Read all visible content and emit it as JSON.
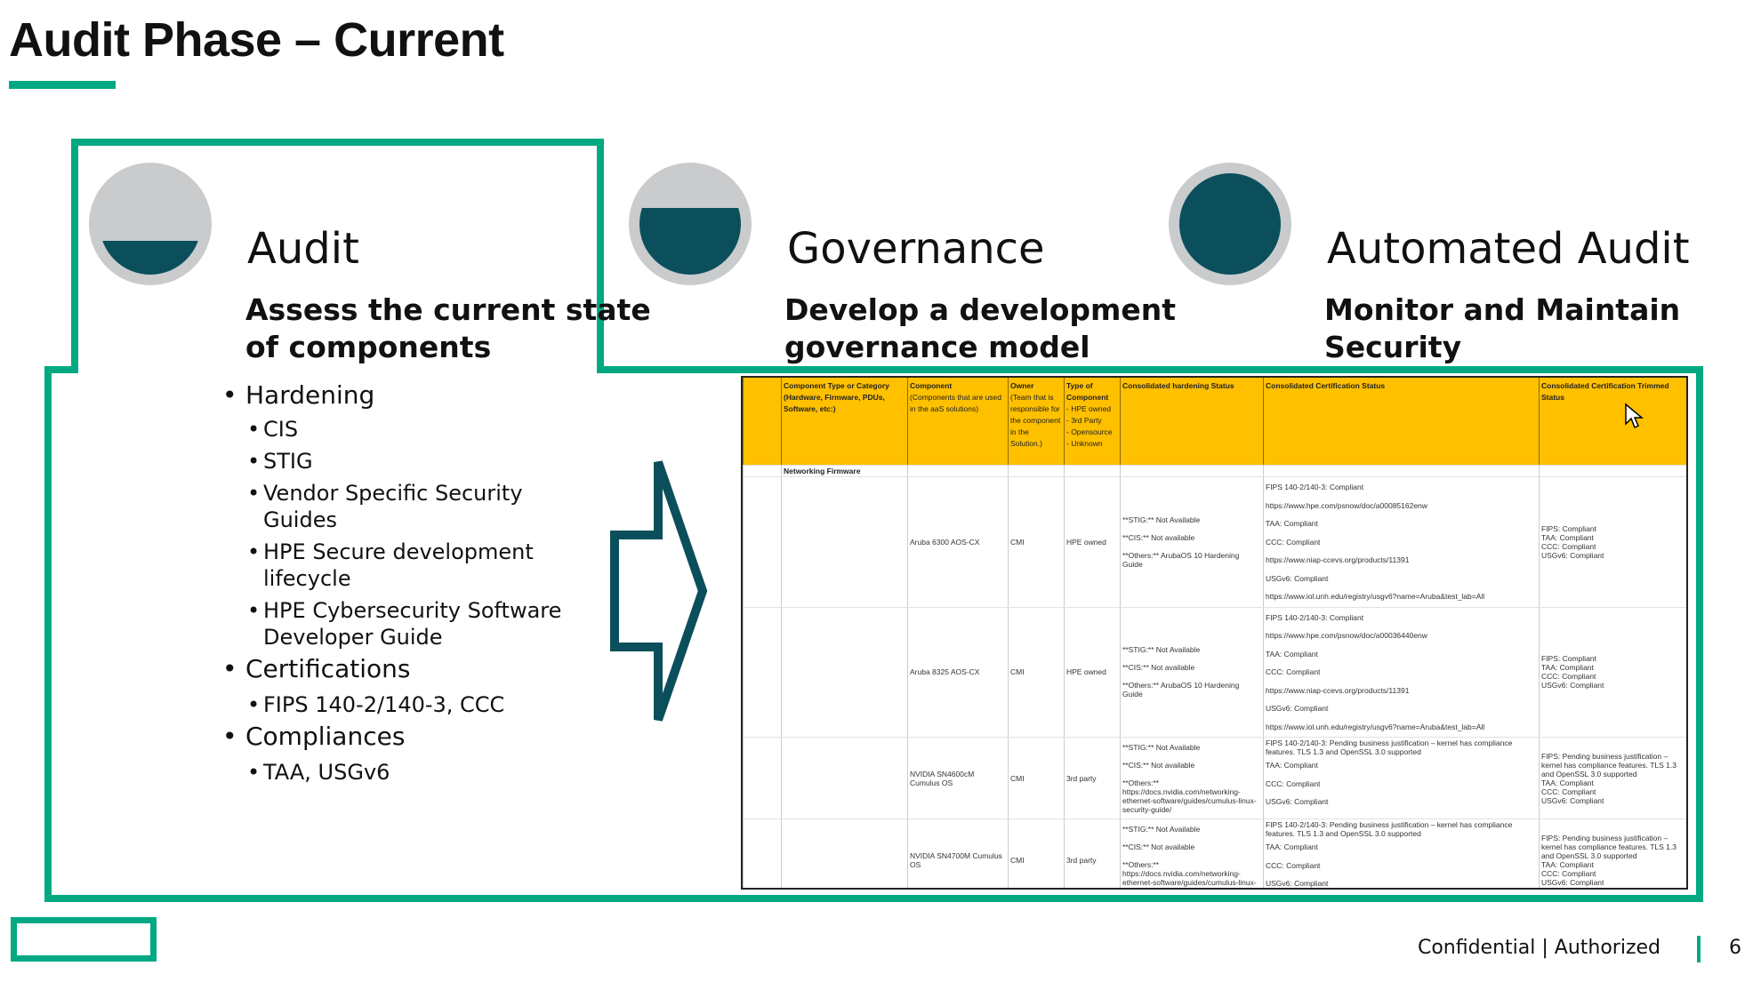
{
  "slide": {
    "title": "Audit Phase – Current",
    "accent_color": "#01a982",
    "dark_color": "#0b4f5c"
  },
  "phases": [
    {
      "title": "Audit",
      "subtitle_lines": [
        "Assess the current state",
        "of components"
      ],
      "fill_level": 0.33
    },
    {
      "title": "Governance",
      "subtitle_lines": [
        "Develop a development",
        "governance model"
      ],
      "fill_level": 0.66
    },
    {
      "title": "Automated Audit",
      "subtitle_lines": [
        "Monitor and Maintain",
        "Security"
      ],
      "fill_level": 1.0
    }
  ],
  "audit_bullets": {
    "hardening": "Hardening",
    "hardening_items": [
      "CIS",
      "STIG",
      "Vendor Specific Security\nGuides",
      "HPE Secure development\nlifecycle",
      "HPE Cybersecurity Software\nDeveloper Guide"
    ],
    "certifications": "Certifications",
    "certification_items": [
      "FIPS 140-2/140-3, CCC"
    ],
    "compliances": "Compliances",
    "compliance_items": [
      "TAA, USGv6"
    ]
  },
  "table": {
    "header_color": "#ffc000",
    "headers": {
      "category": "Component Type or Category (Hardware, Firmware, PDUs, Software, etc:)",
      "component": "Component",
      "component_sub": "(Components that are used in the aaS solutions)",
      "owner": "Owner",
      "owner_sub": "(Team that is responsible for the component in the Solution.)",
      "type": "Type of Component",
      "type_sub": "- HPE owned\n- 3rd Party\n- Opensource\n- Unknown",
      "hardening": "Consolidated hardening Status",
      "certification": "Consolidated Certification Status",
      "trimmed": "Consolidated Certification Trimmed Status"
    },
    "group": "Networking Firmware",
    "rows": [
      {
        "component": "Aruba 6300 AOS-CX",
        "owner": "CMI",
        "type": "HPE owned",
        "hardening": "**STIG:** Not Available\n\n**CIS:** Not available\n\n**Others:** ArubaOS 10 Hardening Guide",
        "certification": "FIPS 140-2/140-3: Compliant\nhttps://www.hpe.com/psnow/doc/a00085162enw\nTAA: Compliant\nCCC: Compliant\nhttps://www.niap-ccevs.org/products/11391\nUSGv6: Compliant\nhttps://www.iol.unh.edu/registry/usgv6?name=Aruba&test_lab=All",
        "trimmed": "FIPS: Compliant\nTAA: Compliant\nCCC: Compliant\nUSGv6: Compliant"
      },
      {
        "component": "Aruba 8325 AOS-CX",
        "owner": "CMI",
        "type": "HPE owned",
        "hardening": "**STIG:** Not Available\n\n**CIS:** Not available\n\n**Others:** ArubaOS 10 Hardening Guide",
        "certification": "FIPS 140-2/140-3: Compliant\nhttps://www.hpe.com/psnow/doc/a00036440enw\nTAA: Compliant\nCCC: Compliant\nhttps://www.niap-ccevs.org/products/11391\nUSGv6: Compliant\nhttps://www.iol.unh.edu/registry/usgv6?name=Aruba&test_lab=All",
        "trimmed": "FIPS: Compliant\nTAA: Compliant\nCCC: Compliant\nUSGv6: Compliant"
      },
      {
        "component": "NVIDIA SN4600cM Cumulus OS",
        "owner": "CMI",
        "type": "3rd party",
        "hardening": "**STIG:** Not Available\n\n**CIS:** Not available\n\n**Others:**\nhttps://docs.nvidia.com/networking-ethernet-software/guides/cumulus-linux-security-guide/",
        "certification_fips": "FIPS 140-2/140-3: Pending business justification – kernel has compliance features. TLS 1.3 and OpenSSL 3.0 supported",
        "certification": "TAA: Compliant\nCCC: Compliant\nUSGv6: Compliant",
        "trimmed": "FIPS: Pending business justification – kernel has compliance features. TLS 1.3 and OpenSSL 3.0 supported\nTAA: Compliant\nCCC: Compliant\nUSGv6: Compliant"
      },
      {
        "component": "NVIDIA SN4700M Cumulus OS",
        "owner": "CMI",
        "type": "3rd party",
        "hardening": "**STIG:** Not Available\n\n**CIS:** Not available\n\n**Others:**\nhttps://docs.nvidia.com/networking-ethernet-software/guides/cumulus-linux-security-guide/",
        "certification_fips": "FIPS 140-2/140-3: Pending business justification – kernel has compliance features. TLS 1.3 and OpenSSL 3.0 supported",
        "certification": "TAA: Compliant\nCCC: Compliant\nUSGv6: Compliant",
        "trimmed": "FIPS: Pending business justification – kernel has compliance features. TLS 1.3 and OpenSSL 3.0 supported\nTAA: Compliant\nCCC: Compliant\nUSGv6: Compliant"
      }
    ]
  },
  "footer": {
    "classification": "Confidential | Authorized",
    "page_number": "6"
  }
}
